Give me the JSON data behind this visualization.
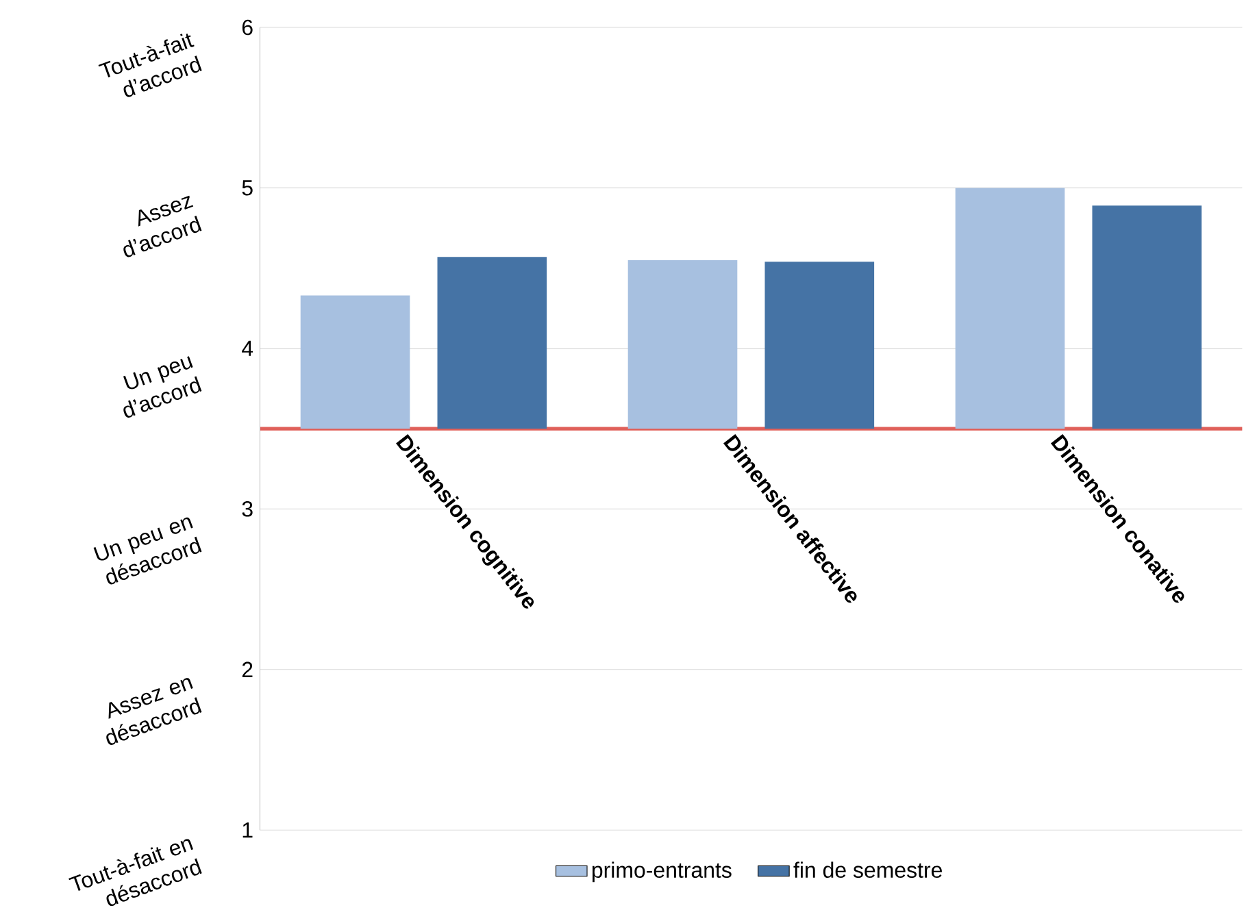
{
  "chart_data": {
    "type": "bar",
    "categories": [
      "Dimension cognitive",
      "Dimension affective",
      "Dimension conative"
    ],
    "series": [
      {
        "name": "primo-entrants",
        "color": "#a7c0e0",
        "values": [
          0.83,
          1.05,
          1.5
        ],
        "base": [
          3.5,
          3.5,
          3.5
        ]
      },
      {
        "name": "fin de semestre",
        "color": "#4573a5",
        "values": [
          1.07,
          1.04,
          1.39
        ],
        "base": [
          3.5,
          3.5,
          3.5
        ]
      }
    ],
    "ylim": [
      1,
      6
    ],
    "yticks": [
      1,
      2,
      3,
      4,
      5,
      6
    ],
    "grid": "y",
    "legend": "bottom",
    "annotations": [
      "Tout-à-fait d’accord",
      "Assez d’accord",
      "Un peu d’accord",
      "Un peu en désaccord",
      "Assez en désaccord",
      "Tout-à-fait en désaccord"
    ]
  }
}
